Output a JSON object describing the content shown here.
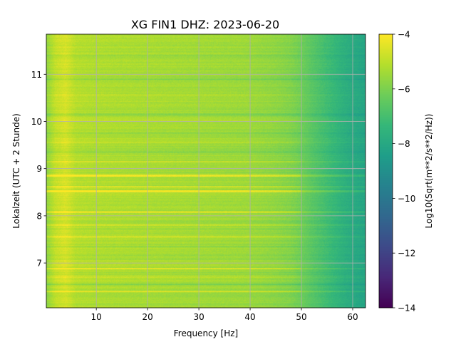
{
  "chart_data": {
    "type": "heatmap",
    "title": "XG FIN1  DHZ: 2023-06-20",
    "xlabel": "Frequency [Hz]",
    "ylabel": "Lokalzeit (UTC + 2 Stunde)",
    "xlim": [
      0.25,
      62.5
    ],
    "ylim": [
      11.85,
      6.05
    ],
    "y_inverted": true,
    "grid": true,
    "colormap": "viridis",
    "colorbar": {
      "label": "Log10(Sqrt(m**2/s**2/Hz))",
      "range": [
        -14,
        -4
      ],
      "ticks": [
        -14,
        -12,
        -10,
        -8,
        -6,
        -4
      ],
      "tick_labels": [
        "−14",
        "−12",
        "−10",
        "−8",
        "−6",
        "−4"
      ]
    },
    "x_ticks": [
      10,
      20,
      30,
      40,
      50,
      60
    ],
    "x_tick_labels": [
      "10",
      "20",
      "30",
      "40",
      "50",
      "60"
    ],
    "y_ticks": [
      7,
      8,
      9,
      10,
      11
    ],
    "y_tick_labels": [
      "7",
      "8",
      "9",
      "10",
      "11"
    ],
    "frequency_profile": {
      "frequencies_hz": [
        0.5,
        2,
        4,
        6,
        10,
        15,
        20,
        25,
        30,
        35,
        40,
        45,
        48,
        50,
        52,
        55,
        58,
        60,
        62
      ],
      "log10_psd": [
        -5.6,
        -4.9,
        -4.6,
        -5.1,
        -5.2,
        -5.25,
        -5.3,
        -5.35,
        -5.4,
        -5.45,
        -5.5,
        -5.7,
        -5.9,
        -6.2,
        -6.6,
        -7.1,
        -7.6,
        -7.9,
        -8.1
      ]
    },
    "bright_bands_hours": [
      {
        "hour": 6.4,
        "delta": 0.8
      },
      {
        "hour": 6.7,
        "delta": 0.6
      },
      {
        "hour": 6.88,
        "delta": 0.9
      },
      {
        "hour": 7.55,
        "delta": 0.6
      },
      {
        "hour": 7.8,
        "delta": 0.7
      },
      {
        "hour": 8.08,
        "delta": 0.7
      },
      {
        "hour": 8.52,
        "delta": 1.3
      },
      {
        "hour": 8.62,
        "delta": 0.8
      },
      {
        "hour": 8.85,
        "delta": 1.1
      },
      {
        "hour": 9.15,
        "delta": 0.5
      },
      {
        "hour": 9.55,
        "delta": 0.4
      },
      {
        "hour": 10.0,
        "delta": 0.35
      },
      {
        "hour": 10.55,
        "delta": 0.35
      }
    ],
    "dim_bands_hours": [
      {
        "hour": 6.55,
        "delta": -0.5
      },
      {
        "hour": 7.35,
        "delta": -0.4
      },
      {
        "hour": 9.35,
        "delta": -0.5
      },
      {
        "hour": 9.75,
        "delta": -0.4
      },
      {
        "hour": 10.15,
        "delta": -0.45
      },
      {
        "hour": 10.9,
        "delta": -0.4
      },
      {
        "hour": 11.4,
        "delta": -0.35
      }
    ]
  }
}
